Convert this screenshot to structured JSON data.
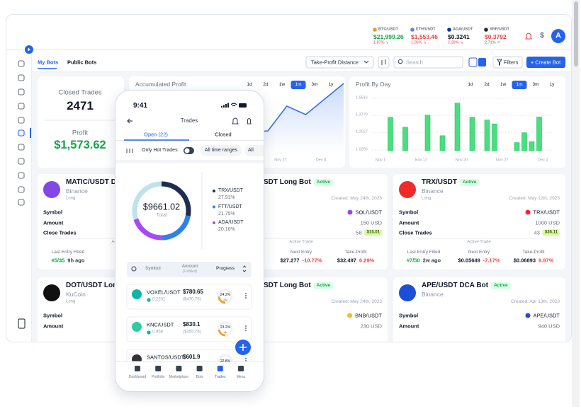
{
  "header": {
    "tickers": [
      {
        "symbol": "BTC/USDT",
        "price": "$21,999.26",
        "change": "1.87% ↘",
        "icon_color": "#f7931a",
        "price_color": "#16a34a",
        "change_color": "#ef4444"
      },
      {
        "symbol": "ETH/USDT",
        "price": "$1,553.46",
        "change": "1.06% ↘",
        "icon_color": "#627eea",
        "price_color": "#ef4444",
        "change_color": "#ef4444"
      },
      {
        "symbol": "ADA/USDT",
        "price": "$0.3241",
        "change": "2.28% ↘",
        "icon_color": "#0033ad",
        "price_color": "#111827",
        "change_color": "#ef4444"
      },
      {
        "symbol": "XRP/USDT",
        "price": "$0.3792",
        "change": "2.71% ↗",
        "icon_color": "#23292f",
        "price_color": "#ef4444",
        "change_color": "#16a34a"
      }
    ],
    "currency": "$",
    "avatar": "A"
  },
  "toolbar": {
    "tabs": [
      "My Bots",
      "Public Bots"
    ],
    "sort": "Take-Profit Distance",
    "search": "Search",
    "filters": "Filters",
    "create": "+ Create Bot"
  },
  "stats": {
    "closed_label": "Closed Trades",
    "closed_value": "2471",
    "profit_label": "Profit",
    "profit_value": "$1,573.62"
  },
  "accumulated": {
    "title": "Accumulated Profit",
    "ranges": [
      "1d",
      "2d",
      "1w",
      "1m",
      "3m",
      "1y"
    ],
    "active": "1m",
    "chart": {
      "type": "line",
      "color": "#2f6fed",
      "values": [
        10,
        18,
        15,
        25,
        22,
        35,
        28,
        30,
        65,
        53,
        75,
        97
      ],
      "x_labels": [
        "Nov 27",
        "Dec 4"
      ]
    }
  },
  "profit_by_day": {
    "title": "Profit By Day",
    "ranges": [
      "1d",
      "2d",
      "1w",
      "1m",
      "3m",
      "1y"
    ],
    "active": "1m",
    "chart": {
      "type": "bar",
      "color": "#4ade80",
      "ylim": [
        1.018,
        1.6
      ],
      "yticks": [
        1.5516,
        {
          "value": 1.377,
          "label": "1.3770"
        },
        1.2027,
        1.0256
      ],
      "grid": true,
      "values": [
        null,
        1.357,
        null,
        1.256,
        null,
        null,
        1.379,
        null,
        1.17,
        null,
        1.501,
        null,
        1.357,
        null,
        1.33,
        1.29,
        null,
        null,
        1.1,
        1.2,
        1.11,
        1.36,
        null
      ],
      "x_labels": [
        "Nov 1",
        "Nov 12",
        "Nov 20",
        "Nov 27",
        "Dec 4"
      ]
    }
  },
  "bots": [
    [
      {
        "title": "MATIC/USDT DC",
        "exchange": "Binance",
        "side": "Long",
        "logo_color": "#8247e5",
        "rows": [
          {
            "label": "Symbol"
          },
          {
            "label": "Amount"
          },
          {
            "label": "Close Trades"
          }
        ],
        "trade": {
          "heading": "Active Trade",
          "cols": [
            {
              "label": "Last Entry Filled",
              "value": "#5/35",
              "change": "9h ago",
              "value_color": "#16a34a",
              "change_color": "#374151"
            }
          ]
        }
      },
      {
        "title": "SDT Long Bot",
        "status": "Active",
        "created": "Created: May 24th, 2023",
        "rows": [
          {
            "value": "SOL/USDT",
            "icon_color": "#9945ff"
          },
          {
            "value": "150 USD"
          },
          {
            "value": "58",
            "badge": "$15.01"
          }
        ],
        "trade": {
          "heading": "Active Trade",
          "cols": [
            {
              "label": "Next Entry",
              "value": "$27.277",
              "change": "-10.77%",
              "value_color": "#111827",
              "change_color": "#ef4444"
            },
            {
              "label": "Take-Profit",
              "value": "$32.497",
              "change": "6.29%",
              "value_color": "#111827",
              "change_color": "#ef4444"
            }
          ]
        }
      },
      {
        "title": "TRX/USDT",
        "status": "Active",
        "exchange": "Binance",
        "side": "Long",
        "created": "Created: May 12th, 2023",
        "logo_color": "#ef2a2a",
        "rows": [
          {
            "label": "Symbol",
            "value": "TRX/USDT",
            "icon_color": "#ef2a2a"
          },
          {
            "label": "Amount",
            "value": "1000 USD"
          },
          {
            "label": "Close Trades",
            "value": "43",
            "badge": "$36.11"
          }
        ],
        "trade": {
          "heading": "Active Trade",
          "cols": [
            {
              "label": "Last Entry Filled",
              "value": "#7/50",
              "change": "2w ago",
              "value_color": "#16a34a",
              "change_color": "#374151"
            },
            {
              "label": "Next Entry",
              "value": "$0.05649",
              "change": "-7.17%",
              "value_color": "#111827",
              "change_color": "#ef4444"
            },
            {
              "label": "Take-Profit",
              "value": "$0.06893",
              "change": "9.97%",
              "value_color": "#111827",
              "change_color": "#ef4444"
            }
          ]
        }
      }
    ],
    [
      {
        "title": "DOT/USDT Long",
        "exchange": "KuCoin",
        "side": "Long",
        "logo_color": "#111111",
        "rows": [
          {
            "label": "Symbol"
          },
          {
            "label": "Amount"
          }
        ]
      },
      {
        "title": "SDT Long Bot",
        "status": "Active",
        "created": "Created: May 24th, 2023",
        "rows": [
          {
            "value": "BNB/USDT",
            "icon_color": "#f3ba2f"
          },
          {
            "value": "230 USD"
          }
        ]
      },
      {
        "title": "APE/USDT DCA Bot",
        "status": "Active",
        "exchange": "Binance",
        "created": "Created: Apr 13th, 2023",
        "logo_color": "#1d4ed8",
        "rows": [
          {
            "label": "Symbol",
            "value": "APE/USDT",
            "icon_color": "#1d4ed8"
          },
          {
            "label": "Amount",
            "value": "940 USD"
          }
        ]
      }
    ]
  ],
  "phone": {
    "time": "9:41",
    "title": "Trades",
    "tabs": [
      "Open (22)",
      "Closed"
    ],
    "filters": [
      "Only Hot Trades",
      "All time ranges",
      "All"
    ],
    "total": "$9661.02",
    "total_label": "Total",
    "portfolio": {
      "type": "donut",
      "categories": [
        "TRX/USDT",
        "FTT/USDT",
        "ADA/USDT"
      ],
      "values": [
        27.91,
        21.75,
        20.16
      ],
      "value_labels": [
        "27.91%",
        "21.75%",
        "20.16%"
      ],
      "colors": [
        "#1f2d4e",
        "#2f80ed",
        "#a64bf4"
      ]
    },
    "columns": [
      "Symbol",
      "Amount",
      "(Fulfilled)",
      "Progress"
    ],
    "trades": [
      {
        "symbol": "VOXEL/USDT",
        "price": "0.2201",
        "amount": "$780.65",
        "fulfilled": "($470.76)",
        "progress": 24.2,
        "progress_label": "24.2%",
        "age": "2M",
        "icon_color": "#0fb5a6"
      },
      {
        "symbol": "KNC/USDT",
        "price": "0.958",
        "amount": "$830.1",
        "fulfilled": "($355.76)",
        "progress": 23.2,
        "progress_label": "23.2%",
        "age": "4h",
        "icon_color": "#31cb9e"
      },
      {
        "symbol": "SANTOS/USDT",
        "amount": "$601.9",
        "progress": 22.8,
        "progress_label": "22.8%",
        "icon_color": "#333333"
      }
    ],
    "nav": [
      "Dashboard",
      "Portfolio",
      "Marketplace",
      "Bots",
      "Trades",
      "Menu"
    ],
    "nav_active": "Trades"
  }
}
